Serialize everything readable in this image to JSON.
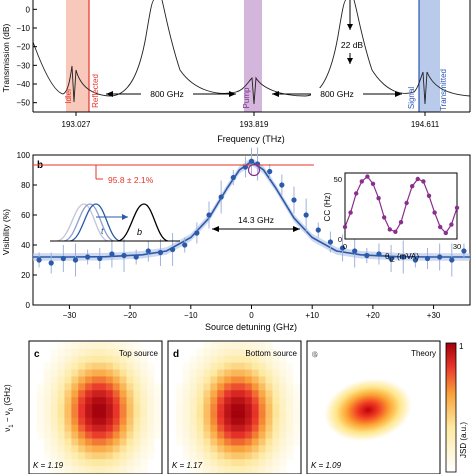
{
  "panel_a": {
    "ylabel": "Transmission (dB)",
    "yticks": [
      "0",
      "−10",
      "−20",
      "−30",
      "−40",
      "−50"
    ],
    "xlabel": "Frequency (THz)",
    "xticks": [
      "193.027",
      "193.819",
      "194.611"
    ],
    "band_labels": {
      "idler": "Idler",
      "reflected": "Reflected",
      "pump": "Pump",
      "signal": "Signal",
      "transmitted": "Transmitted"
    },
    "spacing_left": "800 GHz",
    "spacing_right": "800 GHz",
    "depth_label": "22 dB",
    "colors": {
      "idler": "#e8332a",
      "pump": "#7b2d8e",
      "signal": "#2a55b5"
    }
  },
  "panel_b": {
    "tag": "b",
    "ylabel": "Visibility (%)",
    "xlabel": "Source detuning (GHz)",
    "peak_label": "95.8 ± 2.1%",
    "fwhm_label": "14.3 GHz",
    "sketch_t": "t",
    "sketch_b": "b",
    "colors": {
      "data": "#2a5aa8",
      "fit": "#2a5aa8",
      "peak": "#e8332a"
    }
  },
  "inset": {
    "ylabel": "CC (Hz)",
    "xlabel": "θ_IZ (mVA)",
    "color": "#8b2f8f"
  },
  "maps": [
    {
      "tag": "c",
      "title": "Top source",
      "k": "K = 1.19"
    },
    {
      "tag": "d",
      "title": "Bottom source",
      "k": "K = 1.17"
    },
    {
      "tag": "e",
      "title": "Theory",
      "k": "K = 1.09"
    }
  ],
  "maps_axis": {
    "ylabel": "ν₁ − ν₀ (GHz)",
    "cb_label": "JSD (a.u.)",
    "cb_max": "1",
    "cb_min": "0"
  },
  "chart_data": [
    {
      "type": "line",
      "title": "",
      "xlabel": "Frequency (THz)",
      "ylabel": "Transmission (dB)",
      "ylim": [
        -55,
        5
      ],
      "x_ticks": [
        193.027,
        193.819,
        194.611
      ],
      "y_ticks": [
        0,
        -10,
        -20,
        -30,
        -40,
        -50
      ],
      "series": [
        {
          "x": [
            192.64,
            192.72,
            192.8,
            192.88,
            192.96,
            193.0,
            193.02,
            193.027,
            193.035,
            193.06,
            193.1,
            193.18,
            193.26,
            193.34,
            193.4,
            193.44,
            193.47,
            193.5,
            193.56,
            193.64,
            193.72,
            193.78,
            193.81,
            193.819,
            193.83,
            193.86,
            193.92,
            194.0,
            194.08,
            194.16,
            194.22,
            194.26,
            194.29,
            194.32,
            194.38,
            194.46,
            194.54,
            194.58,
            194.6,
            194.611,
            194.62,
            194.65,
            194.72,
            194.8,
            194.88
          ],
          "y": [
            -28,
            -40,
            -46,
            -45,
            -38,
            -30,
            -34,
            -49,
            -33,
            -36,
            -44,
            -46,
            -41,
            -30,
            -18,
            -6,
            -4,
            -10,
            -24,
            -38,
            -45,
            -44,
            -38,
            -51,
            -37,
            -42,
            -46,
            -44,
            -36,
            -24,
            -12,
            -4,
            -3,
            -8,
            -22,
            -38,
            -44,
            -42,
            -36,
            -50,
            -36,
            -38,
            -44,
            -46,
            -44
          ]
        }
      ]
    },
    {
      "type": "scatter",
      "title": "",
      "xlabel": "Source detuning (GHz)",
      "ylabel": "Visibility (%)",
      "xlim": [
        -36,
        36
      ],
      "ylim": [
        0,
        100
      ],
      "x_ticks": [
        -30,
        -20,
        -10,
        0,
        10,
        20,
        30
      ],
      "x_tick_labels": [
        "−30",
        "−20",
        "−10",
        "0",
        "+10",
        "+20",
        "+30"
      ],
      "y_ticks": [
        0,
        20,
        40,
        60,
        80,
        100
      ],
      "series": [
        {
          "x": [
            -35,
            -33,
            -31,
            -29,
            -27,
            -25,
            -23,
            -21,
            -19,
            -17,
            -15,
            -13,
            -11,
            -9,
            -7,
            -5,
            -3,
            -1,
            0,
            1,
            3,
            5,
            7,
            9,
            11,
            13,
            15,
            17,
            19,
            21,
            23,
            25,
            27,
            29,
            31,
            33,
            35
          ],
          "y": [
            30,
            28,
            31,
            30,
            32,
            31,
            34,
            33,
            32,
            36,
            35,
            37,
            40,
            48,
            60,
            72,
            85,
            92,
            95.8,
            94,
            89,
            80,
            70,
            60,
            50,
            42,
            38,
            36,
            33,
            34,
            31,
            32,
            30,
            31,
            32,
            30,
            36
          ]
        },
        {
          "name": "fit",
          "x": [
            -36,
            -30,
            -24,
            -18,
            -14,
            -10,
            -7,
            -4,
            -2,
            0,
            2,
            4,
            7,
            10,
            14,
            18,
            24,
            30,
            36
          ],
          "y": [
            32,
            32,
            32.2,
            33.5,
            36,
            45,
            58,
            78,
            90,
            95.8,
            90,
            78,
            58,
            45,
            36,
            33.5,
            32.2,
            32,
            32
          ]
        }
      ]
    },
    {
      "type": "line",
      "title": "",
      "xlabel": "θ_IZ (mVA)",
      "ylabel": "CC (Hz)",
      "xlim": [
        0,
        30
      ],
      "ylim": [
        0,
        55
      ],
      "x_ticks": [
        0,
        30
      ],
      "y_ticks": [
        0,
        50
      ],
      "series": [
        {
          "x": [
            0,
            1.5,
            3,
            4.5,
            6,
            7.5,
            9,
            10.5,
            12,
            13.5,
            15,
            16.5,
            18,
            19.5,
            21,
            22.5,
            24,
            25.5,
            27,
            28.5,
            30
          ],
          "y": [
            10,
            22,
            38,
            48,
            52,
            46,
            34,
            18,
            8,
            6,
            14,
            30,
            44,
            50,
            48,
            36,
            22,
            10,
            5,
            12,
            26
          ]
        }
      ]
    }
  ]
}
